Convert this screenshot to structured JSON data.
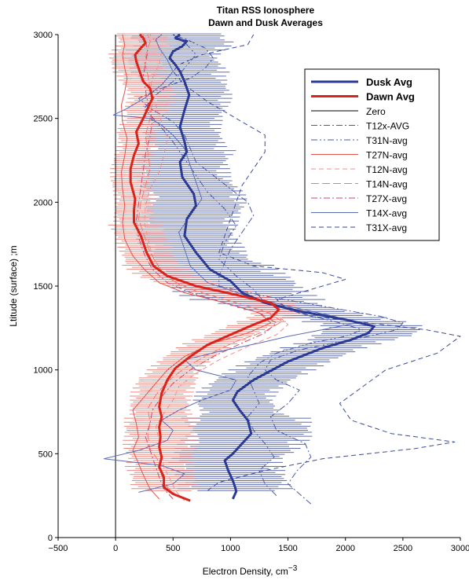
{
  "chart_data": {
    "type": "line",
    "title": "Titan RSS Ionosphere",
    "subtitle": "Dawn and Dusk Averages",
    "xlabel": "Electron Density,  cm",
    "xlabel_superscript": "−3",
    "ylabel": "Ltitude (surface) ;m",
    "xlim": [
      -500,
      3000
    ],
    "ylim": [
      0,
      3000
    ],
    "xticks": [
      "−500",
      "0",
      "500",
      "1000",
      "1500",
      "2000",
      "2500",
      "3000"
    ],
    "yticks": [
      "0",
      "500",
      "1000",
      "1500",
      "2000",
      "2500",
      "3000"
    ],
    "grid": false,
    "legend_position": "top-right",
    "series": [
      {
        "name": "Dusk Avg",
        "color": "#2b3a93",
        "style": "solid",
        "width": 3,
        "x": [
          1020,
          1050,
          1040,
          1020,
          980,
          950,
          1020,
          1100,
          1180,
          1150,
          1080,
          1020,
          1060,
          1200,
          1500,
          1800,
          2050,
          2200,
          2250,
          2000,
          1600,
          1300,
          1100,
          1000,
          820,
          700,
          600,
          620,
          700,
          680,
          580,
          560,
          620,
          600,
          560,
          600,
          640,
          600,
          560,
          520,
          470,
          500,
          580,
          620,
          560,
          520,
          540,
          560
        ],
        "y": [
          230,
          275,
          300,
          340,
          400,
          460,
          500,
          560,
          620,
          700,
          760,
          820,
          870,
          940,
          1050,
          1130,
          1180,
          1220,
          1260,
          1300,
          1350,
          1400,
          1460,
          1530,
          1600,
          1700,
          1800,
          1900,
          1980,
          2050,
          2150,
          2240,
          2300,
          2360,
          2450,
          2550,
          2640,
          2720,
          2780,
          2820,
          2860,
          2900,
          2930,
          2960,
          2970,
          2980,
          2990,
          3000
        ]
      },
      {
        "name": "Dawn Avg",
        "color": "#d9231b",
        "style": "solid",
        "width": 3,
        "x": [
          650,
          500,
          420,
          420,
          380,
          400,
          380,
          390,
          380,
          400,
          380,
          400,
          450,
          520,
          650,
          800,
          1000,
          1200,
          1350,
          1420,
          1350,
          1100,
          700,
          450,
          330,
          270,
          220,
          160,
          160,
          170,
          130,
          130,
          160,
          200,
          180,
          240,
          280,
          320,
          300,
          240,
          220,
          200,
          180,
          170,
          220,
          260,
          240,
          210
        ],
        "y": [
          220,
          260,
          300,
          360,
          420,
          480,
          540,
          600,
          660,
          720,
          780,
          860,
          940,
          1010,
          1080,
          1150,
          1210,
          1270,
          1310,
          1360,
          1400,
          1440,
          1500,
          1560,
          1620,
          1700,
          1800,
          1880,
          1950,
          2020,
          2120,
          2200,
          2280,
          2350,
          2420,
          2500,
          2560,
          2620,
          2680,
          2720,
          2760,
          2800,
          2840,
          2880,
          2920,
          2950,
          2980,
          3000
        ]
      },
      {
        "name": "Zero",
        "color": "#000000",
        "style": "solid",
        "width": 1,
        "x": [
          0,
          0
        ],
        "y": [
          0,
          3000
        ]
      },
      {
        "name": "T12x-AVG",
        "color": "#4a5aa8",
        "style": "dashdot",
        "width": 1,
        "x": [
          1700,
          1600,
          1500,
          1580,
          1700,
          1650,
          1400,
          1350,
          1500,
          1600,
          1400,
          1300,
          1350,
          1600,
          1900,
          2200,
          2450,
          2500,
          2300,
          1800,
          1300,
          900,
          900,
          950,
          1000,
          1100,
          1200,
          1150,
          1000,
          850,
          700,
          650,
          600,
          500,
          300,
          200,
          400,
          650,
          780,
          850,
          780,
          620,
          500
        ],
        "y": [
          200,
          260,
          320,
          400,
          480,
          560,
          640,
          720,
          800,
          880,
          940,
          1000,
          1060,
          1120,
          1160,
          1200,
          1240,
          1280,
          1320,
          1380,
          1440,
          1500,
          1560,
          1640,
          1720,
          1820,
          1920,
          2000,
          2080,
          2160,
          2240,
          2320,
          2400,
          2480,
          2560,
          2620,
          2680,
          2740,
          2800,
          2860,
          2920,
          2970,
          3000
        ]
      },
      {
        "name": "T31N-avg",
        "color": "#4a5aa8",
        "style": "dashdotdot",
        "width": 1,
        "x": [
          1400,
          1300,
          1250,
          1380,
          1300,
          1200,
          1150,
          1250,
          1200,
          1150,
          1250,
          1400,
          1700,
          2000,
          2150,
          1950,
          1600,
          1300,
          1200,
          1050,
          900,
          950,
          1050,
          950,
          800,
          700,
          600,
          500,
          380,
          250,
          350,
          500,
          600,
          700,
          620,
          500
        ],
        "y": [
          250,
          320,
          400,
          480,
          560,
          640,
          720,
          800,
          880,
          960,
          1040,
          1100,
          1160,
          1200,
          1240,
          1280,
          1340,
          1400,
          1480,
          1560,
          1660,
          1760,
          1860,
          1960,
          2060,
          2160,
          2260,
          2360,
          2460,
          2560,
          2640,
          2720,
          2800,
          2880,
          2940,
          3000
        ]
      },
      {
        "name": "T27N-avg",
        "color": "#e0524a",
        "style": "solid",
        "width": 1,
        "x": [
          380,
          300,
          250,
          200,
          150,
          200,
          180,
          150,
          250,
          350,
          450,
          600,
          850,
          1150,
          1350,
          1250,
          950,
          600,
          380,
          250,
          150,
          80,
          60,
          80,
          60,
          50,
          80,
          100,
          60,
          50,
          80,
          100,
          80,
          60,
          80,
          60
        ],
        "y": [
          230,
          290,
          360,
          440,
          520,
          600,
          680,
          760,
          840,
          920,
          1000,
          1080,
          1160,
          1220,
          1280,
          1340,
          1400,
          1460,
          1520,
          1600,
          1680,
          1780,
          1880,
          1980,
          2080,
          2180,
          2280,
          2380,
          2480,
          2580,
          2660,
          2740,
          2800,
          2880,
          2940,
          3000
        ]
      },
      {
        "name": "T12N-avg",
        "color": "#f0908a",
        "style": "dashed",
        "width": 1,
        "x": [
          600,
          520,
          480,
          420,
          400,
          380,
          350,
          420,
          500,
          550,
          700,
          900,
          1150,
          1400,
          1500,
          1400,
          1100,
          800,
          550,
          400,
          320,
          280,
          250,
          260,
          300,
          380,
          420,
          450,
          400,
          350,
          300,
          320,
          380,
          400,
          350,
          300
        ],
        "y": [
          220,
          280,
          340,
          420,
          500,
          580,
          660,
          740,
          820,
          900,
          980,
          1060,
          1140,
          1210,
          1270,
          1330,
          1390,
          1450,
          1510,
          1590,
          1680,
          1780,
          1880,
          1980,
          2080,
          2180,
          2280,
          2380,
          2480,
          2580,
          2660,
          2740,
          2820,
          2900,
          2960,
          3000
        ]
      },
      {
        "name": "T14N-avg",
        "color": "#f07a6e",
        "style": "longdash",
        "width": 1,
        "x": [
          550,
          450,
          400,
          380,
          300,
          280,
          300,
          280,
          350,
          450,
          600,
          800,
          1050,
          1300,
          1450,
          1300,
          1000,
          700,
          500,
          380,
          300,
          250,
          200,
          220,
          260,
          300,
          280,
          260,
          300,
          320,
          300,
          280,
          250,
          280,
          300,
          280
        ],
        "y": [
          240,
          300,
          370,
          450,
          530,
          610,
          690,
          770,
          850,
          930,
          1010,
          1090,
          1170,
          1230,
          1290,
          1350,
          1410,
          1470,
          1530,
          1610,
          1700,
          1800,
          1900,
          2000,
          2100,
          2200,
          2300,
          2400,
          2500,
          2600,
          2680,
          2760,
          2840,
          2910,
          2960,
          3000
        ]
      },
      {
        "name": "T27X-avg",
        "color": "#c84b6a",
        "style": "dashdot",
        "width": 1,
        "x": [
          500,
          420,
          380,
          340,
          300,
          260,
          300,
          320,
          400,
          500,
          650,
          850,
          1100,
          1300,
          1400,
          1250,
          950,
          650,
          450,
          320,
          250,
          200,
          180,
          200,
          220,
          240,
          260,
          300,
          320,
          280,
          260,
          240,
          260,
          280,
          260,
          240
        ],
        "y": [
          230,
          290,
          360,
          440,
          520,
          600,
          680,
          760,
          840,
          920,
          1000,
          1080,
          1160,
          1220,
          1280,
          1340,
          1400,
          1460,
          1520,
          1600,
          1690,
          1790,
          1890,
          1990,
          2090,
          2190,
          2290,
          2390,
          2490,
          2590,
          2670,
          2750,
          2830,
          2900,
          2960,
          3000
        ]
      },
      {
        "name": "T14X-avg",
        "color": "#5a6cb8",
        "style": "solid",
        "width": 1,
        "x": [
          200,
          500,
          600,
          400,
          -100,
          200,
          450,
          500,
          400,
          550,
          750,
          1000,
          1050,
          700,
          600,
          900,
          1250,
          1500,
          1800,
          2100,
          1900,
          1500,
          1150,
          800,
          650,
          600,
          550,
          650,
          750,
          700,
          650,
          600,
          500,
          400,
          300,
          -20,
          100,
          250,
          400,
          500,
          450,
          380,
          350,
          400
        ],
        "y": [
          270,
          320,
          380,
          430,
          470,
          520,
          580,
          640,
          700,
          760,
          820,
          880,
          940,
          1000,
          1060,
          1110,
          1160,
          1200,
          1240,
          1280,
          1320,
          1380,
          1440,
          1520,
          1620,
          1720,
          1820,
          1920,
          2020,
          2120,
          2220,
          2320,
          2400,
          2460,
          2500,
          2520,
          2560,
          2620,
          2700,
          2780,
          2850,
          2920,
          2970,
          3000
        ]
      },
      {
        "name": "T31X-avg",
        "color": "#3a4a9a",
        "style": "dashed",
        "width": 1,
        "x": [
          800,
          900,
          1300,
          1800,
          2600,
          2950,
          2400,
          2050,
          1950,
          2150,
          2350,
          2800,
          3000,
          2700,
          2200,
          1700,
          1500,
          1400,
          1700,
          2000,
          1800,
          1200,
          900,
          950,
          1000,
          1050,
          1100,
          1200,
          1300,
          1300,
          1050,
          800,
          600,
          500,
          550,
          750,
          1150,
          1200
        ],
        "y": [
          280,
          330,
          400,
          470,
          530,
          570,
          620,
          700,
          800,
          900,
          1000,
          1100,
          1200,
          1240,
          1280,
          1320,
          1360,
          1420,
          1480,
          1540,
          1580,
          1620,
          1700,
          1800,
          1900,
          2000,
          2100,
          2200,
          2300,
          2400,
          2500,
          2600,
          2700,
          2780,
          2820,
          2880,
          2940,
          3000
        ]
      }
    ],
    "error_bars": [
      {
        "series": "Dusk Avg",
        "color": "#3a4a9a",
        "min_y": 280,
        "max_y": 3000,
        "half_width": [
          420,
          470,
          300,
          320,
          380,
          500,
          380,
          380,
          360,
          300,
          320,
          360
        ]
      },
      {
        "series": "Dawn Avg",
        "color": "#e86a60",
        "min_y": 280,
        "max_y": 3000,
        "half_width": [
          250,
          270,
          230,
          200,
          180,
          230,
          200,
          150,
          150,
          150,
          180,
          200
        ]
      }
    ]
  },
  "legend": {
    "items": [
      {
        "label": "Dusk Avg",
        "color": "#2b3a93",
        "style": "solid",
        "width": 3,
        "bold": true
      },
      {
        "label": "Dawn Avg",
        "color": "#d9231b",
        "style": "solid",
        "width": 3,
        "bold": true
      },
      {
        "label": "Zero",
        "color": "#000000",
        "style": "solid",
        "width": 1,
        "bold": false
      },
      {
        "label": "T12x-AVG",
        "color": "#4a5aa8",
        "style": "dashdot",
        "width": 1,
        "bold": false
      },
      {
        "label": "T31N-avg",
        "color": "#4a5aa8",
        "style": "dashdotdot",
        "width": 1,
        "bold": false
      },
      {
        "label": "T27N-avg",
        "color": "#e0524a",
        "style": "solid",
        "width": 1,
        "bold": false
      },
      {
        "label": "T12N-avg",
        "color": "#f0908a",
        "style": "dashed",
        "width": 1,
        "bold": false
      },
      {
        "label": "T14N-avg",
        "color": "#f07a6e",
        "style": "longdash",
        "width": 1,
        "bold": false
      },
      {
        "label": "T27X-avg",
        "color": "#c84b6a",
        "style": "dashdot",
        "width": 1,
        "bold": false
      },
      {
        "label": "T14X-avg",
        "color": "#5a6cb8",
        "style": "solid",
        "width": 1,
        "bold": false
      },
      {
        "label": "T31X-avg",
        "color": "#3a4a9a",
        "style": "dashed",
        "width": 1,
        "bold": false
      }
    ]
  }
}
